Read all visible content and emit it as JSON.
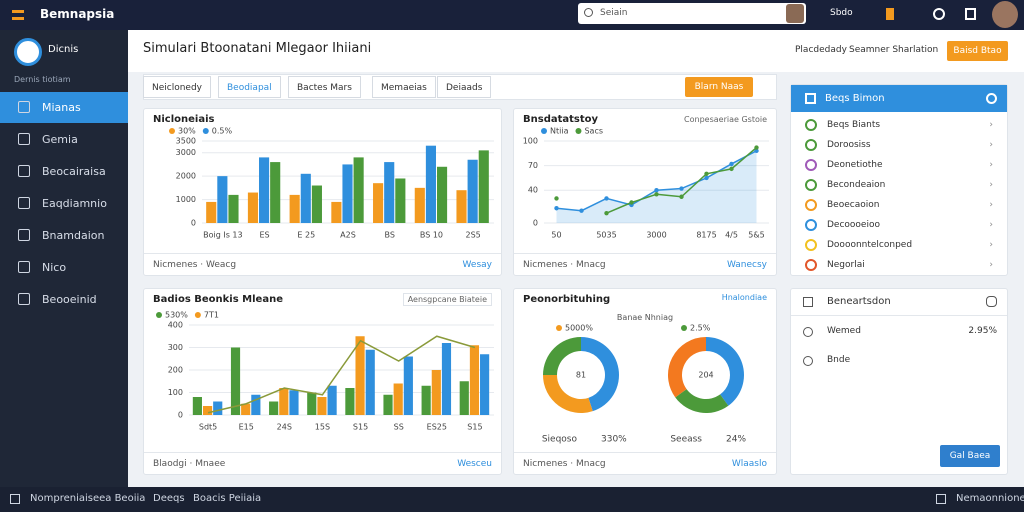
{
  "topbar": {
    "logo": "Bemnapsia",
    "search": "Seiain",
    "icon_label": "Sbdo"
  },
  "sidebar": {
    "profile_name": "Dicnis",
    "profile_sub": "Dernis tiotiam",
    "nav": [
      "Mianas",
      "Gemia",
      "Beocairaisa",
      "Eaqdiamnio",
      "Bnamdaion",
      "Nico",
      "Beooeinid"
    ]
  },
  "header": {
    "title": "Simulari Btoonatani Mlegaor Ihiiani",
    "links": [
      "Placdedady",
      "Seamner Sharlation"
    ],
    "button": "Baisd Btao"
  },
  "toolbar": {
    "tabs": [
      "Neiclonedy",
      "Beodiapal",
      "Bactes Mars",
      "Memaeias",
      "Deiaads"
    ],
    "button": "Blarn Naas"
  },
  "bar_card": {
    "title": "Nicloneiais",
    "footer": "Nicmenes · Weacg",
    "link": "Wesay",
    "chart": {
      "type": "bar",
      "categories": [
        "Boig Is 13",
        "ES",
        "E 25",
        "A2S",
        "BS",
        "BS 10",
        "2S5"
      ],
      "series": [
        {
          "name": "30%",
          "color": "#f39a1f",
          "values": [
            900,
            1300,
            1200,
            900,
            1700,
            1500,
            1400
          ]
        },
        {
          "name": "0.5%",
          "color": "#2f8fdd",
          "values": [
            2000,
            2800,
            2100,
            2500,
            2600,
            3300,
            2700
          ]
        },
        {
          "color": "#4c9a3a",
          "values": [
            1200,
            2600,
            1600,
            2800,
            1900,
            2400,
            3100
          ]
        }
      ],
      "ylim": [
        0,
        3500
      ],
      "yticks": [
        0,
        1000,
        2000,
        3000,
        3500
      ],
      "grid": true
    }
  },
  "line_card": {
    "title": "Bnsdatatstoy",
    "tag": "Conpesaeriae Gstoie",
    "footer": "Nicmenes · Mnacg",
    "link": "Wanecsy",
    "chart": {
      "type": "line",
      "categories": [
        "50",
        null,
        "5035",
        null,
        "3000",
        null,
        "8175",
        "4/5",
        "5&5"
      ],
      "series": [
        {
          "name": "Ntiia",
          "color": "#2f8fdd",
          "values": [
            18,
            15,
            30,
            22,
            40,
            42,
            55,
            72,
            88
          ]
        },
        {
          "name": "Sacs",
          "color": "#4c9a3a",
          "values": [
            30,
            null,
            12,
            25,
            35,
            32,
            60,
            66,
            92
          ]
        }
      ],
      "ylim": [
        0,
        100
      ],
      "yticks": [
        0,
        40,
        70,
        100
      ],
      "grid": true
    }
  },
  "combo_card": {
    "title": "Badios Beonkis Mleane",
    "tag": "Aensgpcane Biateie",
    "footer": "Blaodgi · Mnaee",
    "link": "Wesceu",
    "chart": {
      "type": "bar",
      "categories": [
        "Sdt5",
        "E15",
        "24S",
        "15S",
        "S15",
        "SS",
        "ES25",
        "S15"
      ],
      "series": [
        {
          "name": "530%",
          "color": "#4c9a3a",
          "values": [
            80,
            300,
            60,
            100,
            120,
            90,
            130,
            150
          ]
        },
        {
          "name": "7T1",
          "color": "#f39a1f",
          "values": [
            40,
            50,
            120,
            80,
            350,
            140,
            200,
            310
          ]
        },
        {
          "color": "#2f8fdd",
          "values": [
            60,
            90,
            110,
            130,
            290,
            260,
            320,
            270
          ]
        }
      ],
      "line": {
        "color": "#8a9a3a",
        "values": [
          10,
          50,
          120,
          90,
          330,
          240,
          350,
          300
        ]
      },
      "ylim": [
        0,
        400
      ],
      "yticks": [
        0,
        100,
        200,
        300,
        400
      ],
      "grid": true
    }
  },
  "donut_card": {
    "title": "Peonorbituhing",
    "tag": "Hnalondiae",
    "subtitle": "Banae Nhniag",
    "footer": "Nicmenes · Mnacg",
    "link": "Wlaaslo",
    "charts": [
      {
        "type": "pie",
        "center": "81",
        "legend": "5000%",
        "caption": "Sieqoso",
        "caption_value": "330%",
        "colors": [
          "#2f8fdd",
          "#f39a1f",
          "#4c9a3a"
        ],
        "values": [
          45,
          30,
          25
        ]
      },
      {
        "type": "pie",
        "center": "204",
        "legend": "2.5%",
        "caption": "Seeass",
        "caption_value": "24%",
        "colors": [
          "#2f8fdd",
          "#4c9a3a",
          "#f3791f"
        ],
        "values": [
          40,
          25,
          35
        ]
      }
    ]
  },
  "list_card": {
    "title": "Beqs Bimon",
    "items": [
      {
        "label": "Beqs Biants",
        "color": "#4c9a3a"
      },
      {
        "label": "Doroosiss",
        "color": "#4c9a3a"
      },
      {
        "label": "Deonetiothe",
        "color": "#a05ab8"
      },
      {
        "label": "Becondeaion",
        "color": "#4c9a3a"
      },
      {
        "label": "Beoecaoion",
        "color": "#f39a1f"
      },
      {
        "label": "Decoooeioo",
        "color": "#2f8fdd"
      },
      {
        "label": "Doooonntelconped",
        "color": "#f3c11f"
      },
      {
        "label": "Negorlai",
        "color": "#e2572a"
      }
    ]
  },
  "detail_card": {
    "title": "Beneartsdon",
    "rows": [
      {
        "label": "Wemed",
        "value": "2.95%"
      },
      {
        "label": "Bnde"
      }
    ],
    "button": "Gal Baea"
  },
  "footer": {
    "left": [
      "Nompreniaiseea Beoiia",
      "Deeqs",
      "Boacis Peiiaia"
    ],
    "right": "Nemaonnione"
  }
}
